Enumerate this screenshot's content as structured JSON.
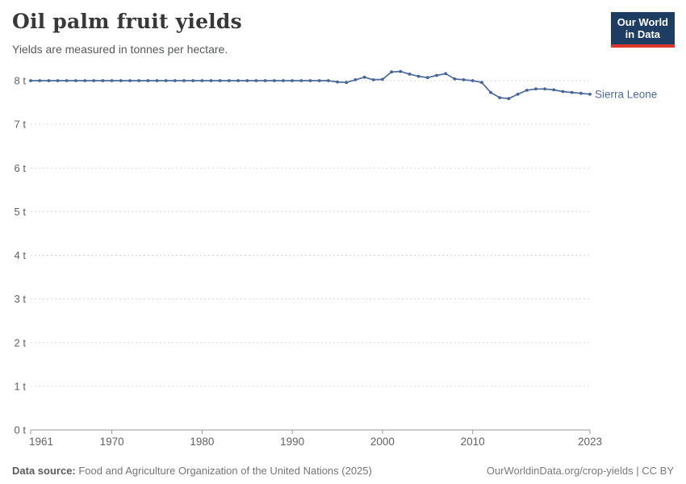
{
  "header": {
    "title": "Oil palm fruit yields",
    "subtitle": "Yields are measured in tonnes per hectare."
  },
  "logo": {
    "line1": "Our World",
    "line2": "in Data",
    "bg": "#1d3d63",
    "accent": "#dc362c"
  },
  "footer": {
    "source_label": "Data source:",
    "source_text": " Food and Agriculture Organization of the United Nations (2025)",
    "right_text": "OurWorldinData.org/crop-yields | CC BY"
  },
  "chart_data": {
    "type": "line",
    "title": "Oil palm fruit yields",
    "subtitle": "Yields are measured in tonnes per hectare.",
    "xlabel": "",
    "ylabel": "tonnes per hectare",
    "unit_suffix": " t",
    "xlim": [
      1961,
      2023
    ],
    "ylim": [
      0,
      8.4
    ],
    "grid": "horizontal-dashed",
    "legend_position": "end-of-line-label",
    "xticks": [
      1961,
      1970,
      1980,
      1990,
      2000,
      2010,
      2023
    ],
    "ytick_values": [
      0,
      1,
      2,
      3,
      4,
      5,
      6,
      7,
      8
    ],
    "ytick_labels": [
      "0 t",
      "1 t",
      "2 t",
      "3 t",
      "4 t",
      "5 t",
      "6 t",
      "7 t",
      "8 t"
    ],
    "x": [
      1961,
      1962,
      1963,
      1964,
      1965,
      1966,
      1967,
      1968,
      1969,
      1970,
      1971,
      1972,
      1973,
      1974,
      1975,
      1976,
      1977,
      1978,
      1979,
      1980,
      1981,
      1982,
      1983,
      1984,
      1985,
      1986,
      1987,
      1988,
      1989,
      1990,
      1991,
      1992,
      1993,
      1994,
      1995,
      1996,
      1997,
      1998,
      1999,
      2000,
      2001,
      2002,
      2003,
      2004,
      2005,
      2006,
      2007,
      2008,
      2009,
      2010,
      2011,
      2012,
      2013,
      2014,
      2015,
      2016,
      2017,
      2018,
      2019,
      2020,
      2021,
      2022,
      2023
    ],
    "series": [
      {
        "name": "Sierra Leone",
        "color": "#4C6A9C",
        "values": [
          8.0,
          8.0,
          8.0,
          8.0,
          8.0,
          8.0,
          8.0,
          8.0,
          8.0,
          8.0,
          8.0,
          8.0,
          8.0,
          8.0,
          8.0,
          8.0,
          8.0,
          8.0,
          8.0,
          8.0,
          8.0,
          8.0,
          8.0,
          8.0,
          8.0,
          8.0,
          8.0,
          8.0,
          8.0,
          8.0,
          8.0,
          8.0,
          8.0,
          8.0,
          7.97,
          7.96,
          8.02,
          8.08,
          8.02,
          8.03,
          8.2,
          8.21,
          8.15,
          8.1,
          8.07,
          8.12,
          8.16,
          8.04,
          8.02,
          8.0,
          7.96,
          7.73,
          7.61,
          7.59,
          7.69,
          7.78,
          7.81,
          7.81,
          7.79,
          7.75,
          7.73,
          7.71,
          7.69
        ]
      }
    ],
    "colors": {
      "line": "#4C6A9C",
      "marker": "#44639c",
      "gridline": "#dadada",
      "axis": "#999999",
      "tick_label": "#616161",
      "entity_label": "#4C6A9C"
    }
  }
}
